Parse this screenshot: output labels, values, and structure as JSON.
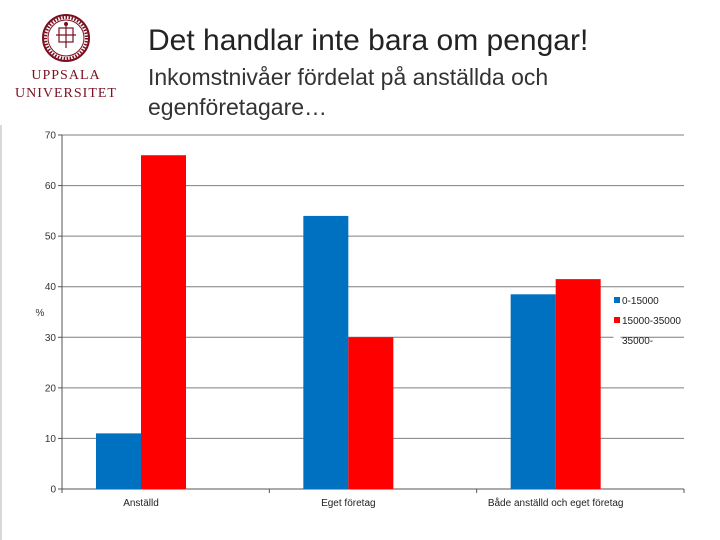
{
  "header": {
    "title": "Det handlar inte bara om pengar!",
    "subtitle": "Inkomstnivåer fördelat på anställda och egenföretagare…",
    "logo_line1": "UPPSALA",
    "logo_line2": "UNIVERSITET"
  },
  "colors": {
    "series_0": "#0070c0",
    "series_1": "#ff0000",
    "series_2": "#ffffff"
  },
  "chart_data": {
    "type": "bar",
    "title": "",
    "xlabel": "",
    "ylabel": "%",
    "ylim": [
      0,
      70
    ],
    "yticks": [
      0,
      10,
      20,
      30,
      40,
      50,
      60,
      70
    ],
    "categories": [
      "Anställd",
      "Eget företag",
      "Både anställd och eget företag"
    ],
    "series": [
      {
        "name": "0-15000",
        "values": [
          11,
          54,
          38.5
        ],
        "color": "#0070c0"
      },
      {
        "name": "15000-35000",
        "values": [
          66,
          30,
          41.5
        ],
        "color": "#ff0000"
      },
      {
        "name": "35000-",
        "values": [
          0,
          0,
          0
        ],
        "color": "#ffffff"
      }
    ],
    "legend_position": "right",
    "grid": true
  }
}
